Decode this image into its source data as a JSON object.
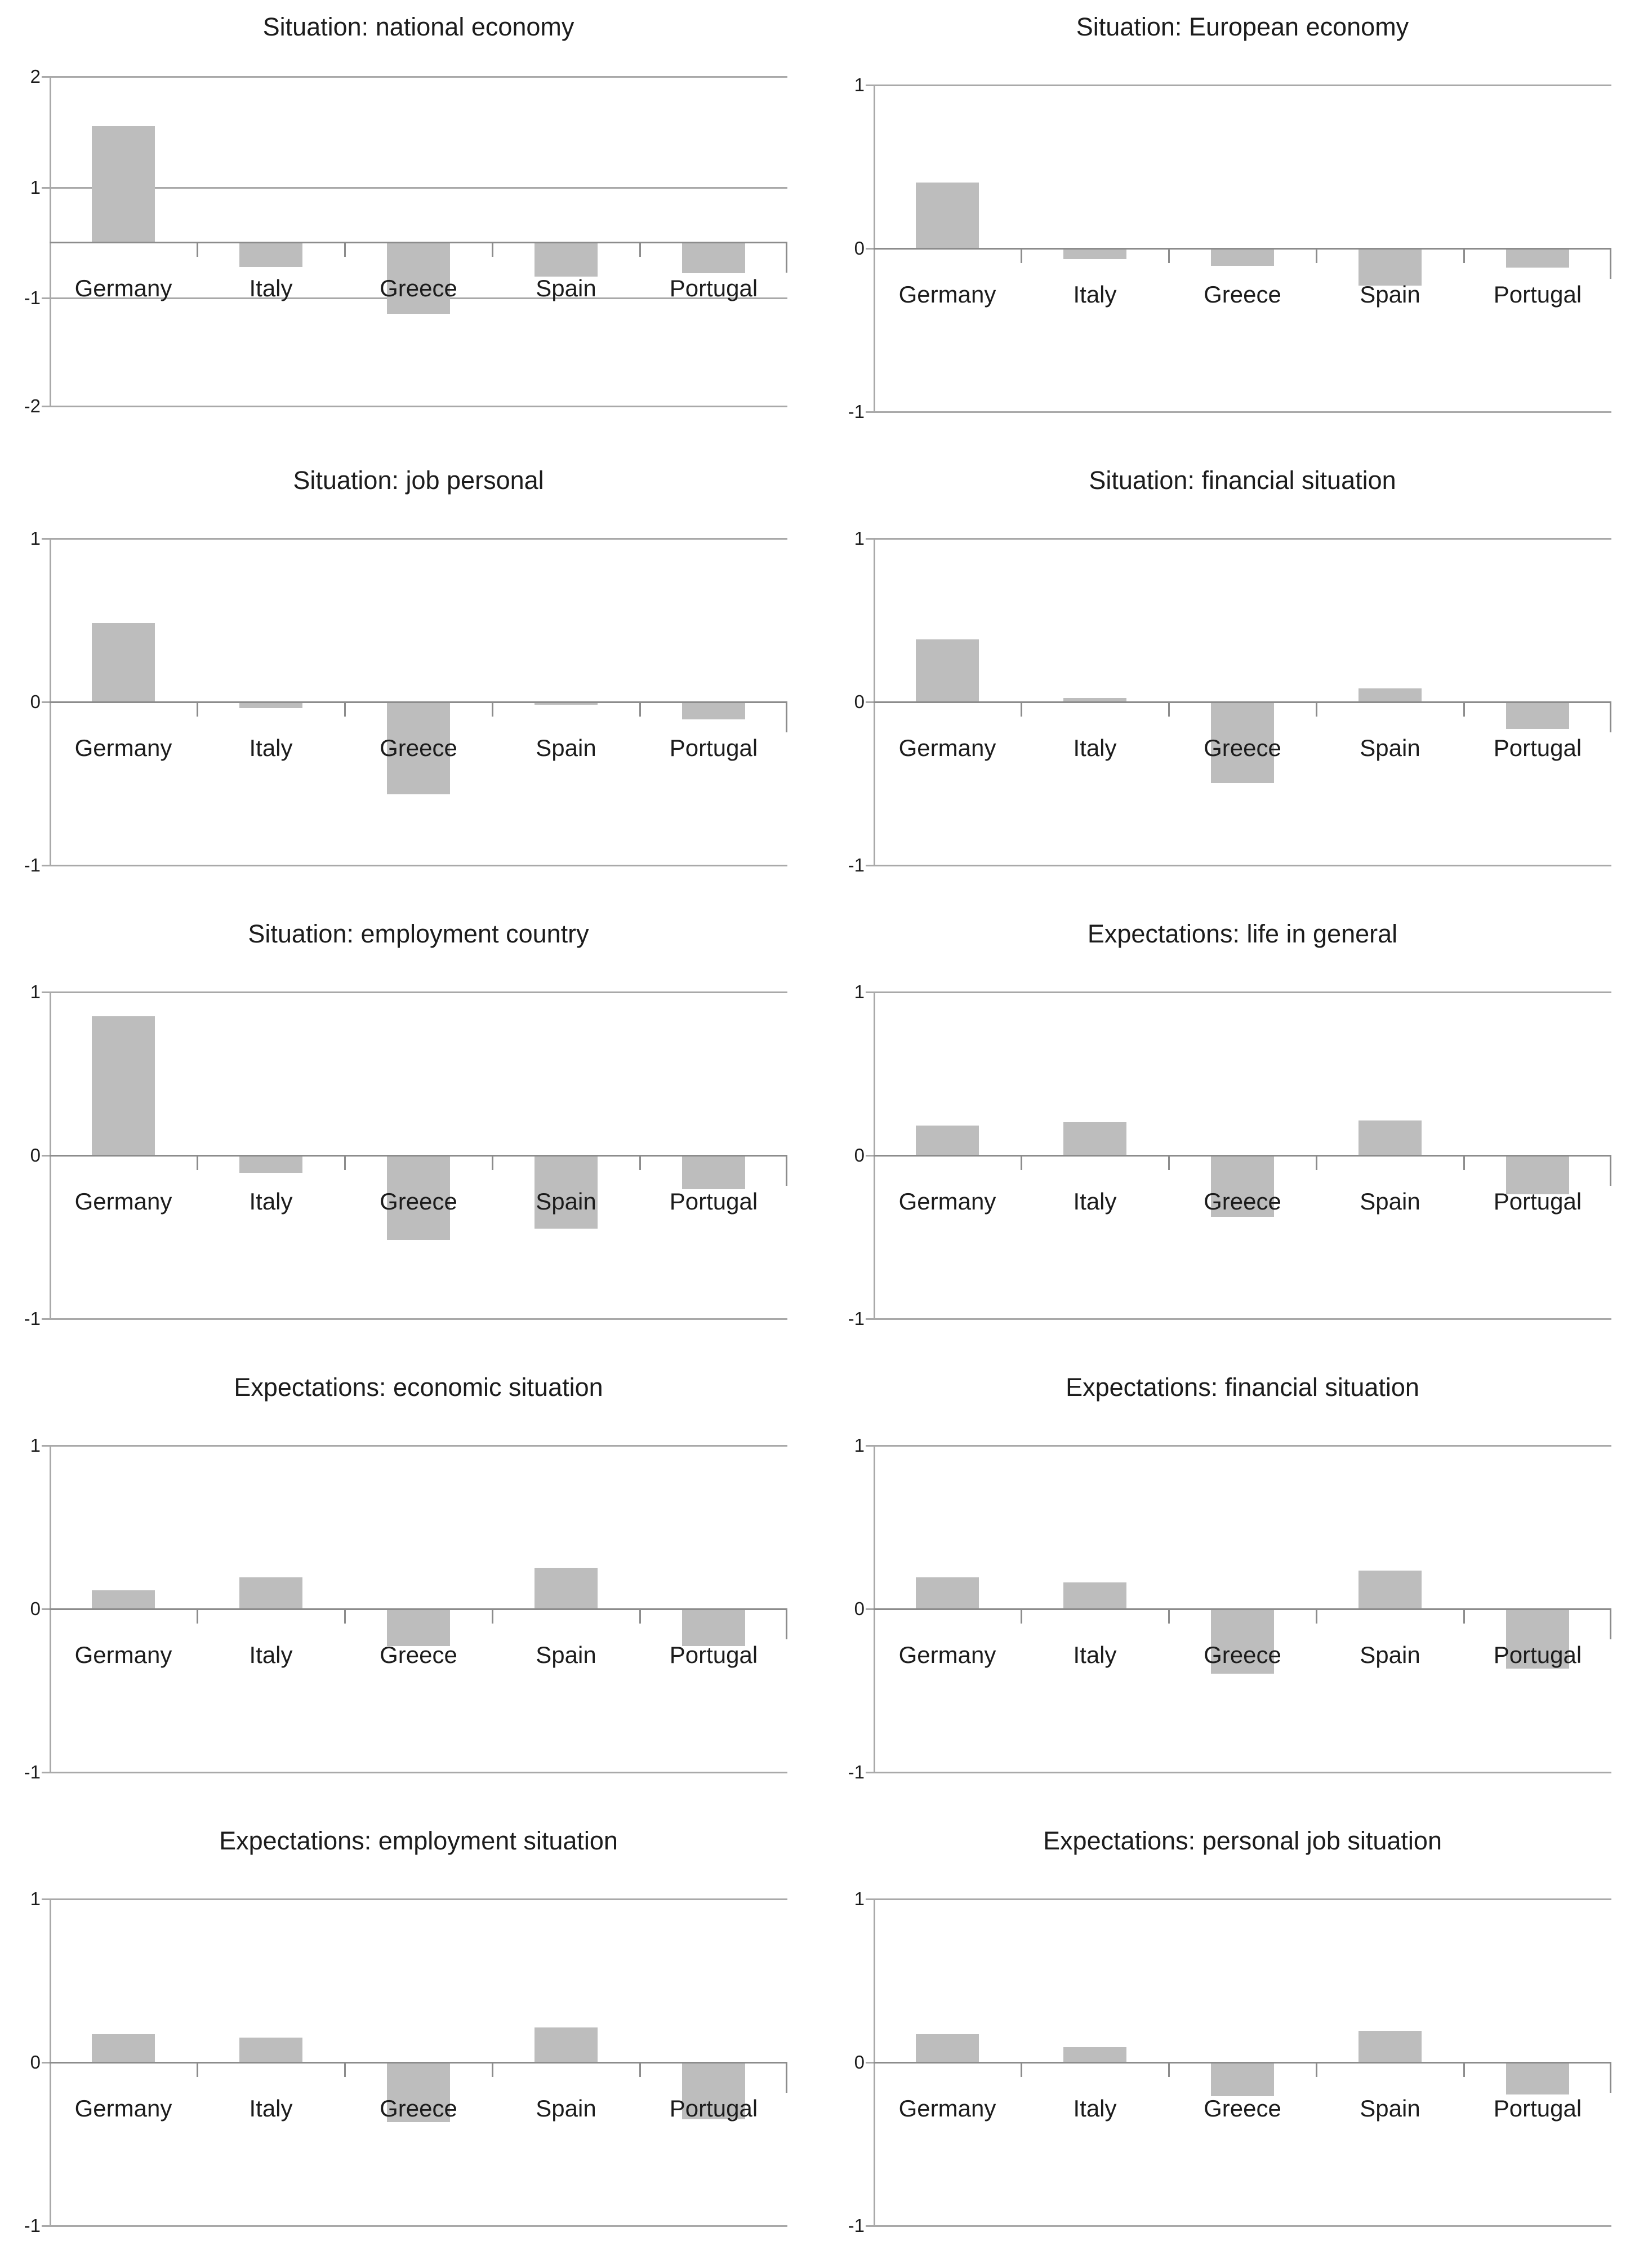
{
  "figure": {
    "background": "#ffffff",
    "layout": "2 columns x 5 rows of bar charts"
  },
  "colors": {
    "bar": "#bdbdbd",
    "gridline": "#a9a9a9",
    "zero_axis": "#8c8c8c",
    "text": "#1c1c1c"
  },
  "chart_data": [
    {
      "type": "bar",
      "title": "Situation: national economy",
      "categories": [
        "Germany",
        "Italy",
        "Greece",
        "Spain",
        "Portugal"
      ],
      "values": [
        1.55,
        -0.45,
        -1.15,
        -0.63,
        -0.57
      ],
      "ylim": [
        -2,
        2
      ],
      "yticks": [
        {
          "value": 2,
          "label": "2"
        },
        {
          "value": 1,
          "label": "1"
        },
        {
          "value": -1,
          "label": "-1"
        },
        {
          "value": -2,
          "label": "-2"
        }
      ],
      "xlabel": "",
      "ylabel": "",
      "grid": "horizontal",
      "legend": "none"
    },
    {
      "type": "bar",
      "title": "Situation: European economy",
      "categories": [
        "Germany",
        "Italy",
        "Greece",
        "Spain",
        "Portugal"
      ],
      "values": [
        0.4,
        -0.07,
        -0.11,
        -0.23,
        -0.12
      ],
      "ylim": [
        -1,
        1
      ],
      "yticks": [
        {
          "value": 1,
          "label": "1"
        },
        {
          "value": 0,
          "label": "0"
        },
        {
          "value": -1,
          "label": "-1"
        }
      ],
      "xlabel": "",
      "ylabel": "",
      "grid": "horizontal",
      "legend": "none"
    },
    {
      "type": "bar",
      "title": "Situation: job personal",
      "categories": [
        "Germany",
        "Italy",
        "Greece",
        "Spain",
        "Portugal"
      ],
      "values": [
        0.48,
        -0.04,
        -0.57,
        -0.02,
        -0.11
      ],
      "ylim": [
        -1,
        1
      ],
      "yticks": [
        {
          "value": 1,
          "label": "1"
        },
        {
          "value": 0,
          "label": "0"
        },
        {
          "value": -1,
          "label": "-1"
        }
      ],
      "xlabel": "",
      "ylabel": "",
      "grid": "horizontal",
      "legend": "none"
    },
    {
      "type": "bar",
      "title": "Situation: financial situation",
      "categories": [
        "Germany",
        "Italy",
        "Greece",
        "Spain",
        "Portugal"
      ],
      "values": [
        0.38,
        0.02,
        -0.5,
        0.08,
        -0.17
      ],
      "ylim": [
        -1,
        1
      ],
      "yticks": [
        {
          "value": 1,
          "label": "1"
        },
        {
          "value": 0,
          "label": "0"
        },
        {
          "value": -1,
          "label": "-1"
        }
      ],
      "xlabel": "",
      "ylabel": "",
      "grid": "horizontal",
      "legend": "none"
    },
    {
      "type": "bar",
      "title": "Situation: employment country",
      "categories": [
        "Germany",
        "Italy",
        "Greece",
        "Spain",
        "Portugal"
      ],
      "values": [
        0.85,
        -0.11,
        -0.52,
        -0.45,
        -0.21
      ],
      "ylim": [
        -1,
        1
      ],
      "yticks": [
        {
          "value": 1,
          "label": "1"
        },
        {
          "value": 0,
          "label": "0"
        },
        {
          "value": -1,
          "label": "-1"
        }
      ],
      "xlabel": "",
      "ylabel": "",
      "grid": "horizontal",
      "legend": "none"
    },
    {
      "type": "bar",
      "title": "Expectations: life in general",
      "categories": [
        "Germany",
        "Italy",
        "Greece",
        "Spain",
        "Portugal"
      ],
      "values": [
        0.18,
        0.2,
        -0.38,
        0.21,
        -0.24
      ],
      "ylim": [
        -1,
        1
      ],
      "yticks": [
        {
          "value": 1,
          "label": "1"
        },
        {
          "value": 0,
          "label": "0"
        },
        {
          "value": -1,
          "label": "-1"
        }
      ],
      "xlabel": "",
      "ylabel": "",
      "grid": "horizontal",
      "legend": "none"
    },
    {
      "type": "bar",
      "title": "Expectations: economic situation",
      "categories": [
        "Germany",
        "Italy",
        "Greece",
        "Spain",
        "Portugal"
      ],
      "values": [
        0.11,
        0.19,
        -0.23,
        0.25,
        -0.23
      ],
      "ylim": [
        -1,
        1
      ],
      "yticks": [
        {
          "value": 1,
          "label": "1"
        },
        {
          "value": 0,
          "label": "0"
        },
        {
          "value": -1,
          "label": "-1"
        }
      ],
      "xlabel": "",
      "ylabel": "",
      "grid": "horizontal",
      "legend": "none"
    },
    {
      "type": "bar",
      "title": "Expectations: financial situation",
      "categories": [
        "Germany",
        "Italy",
        "Greece",
        "Spain",
        "Portugal"
      ],
      "values": [
        0.19,
        0.16,
        -0.4,
        0.23,
        -0.37
      ],
      "ylim": [
        -1,
        1
      ],
      "yticks": [
        {
          "value": 1,
          "label": "1"
        },
        {
          "value": 0,
          "label": "0"
        },
        {
          "value": -1,
          "label": "-1"
        }
      ],
      "xlabel": "",
      "ylabel": "",
      "grid": "horizontal",
      "legend": "none"
    },
    {
      "type": "bar",
      "title": "Expectations: employment situation",
      "categories": [
        "Germany",
        "Italy",
        "Greece",
        "Spain",
        "Portugal"
      ],
      "values": [
        0.17,
        0.15,
        -0.37,
        0.21,
        -0.35
      ],
      "ylim": [
        -1,
        1
      ],
      "yticks": [
        {
          "value": 1,
          "label": "1"
        },
        {
          "value": 0,
          "label": "0"
        },
        {
          "value": -1,
          "label": "-1"
        }
      ],
      "xlabel": "",
      "ylabel": "",
      "grid": "horizontal",
      "legend": "none"
    },
    {
      "type": "bar",
      "title": "Expectations: personal job situation",
      "categories": [
        "Germany",
        "Italy",
        "Greece",
        "Spain",
        "Portugal"
      ],
      "values": [
        0.17,
        0.09,
        -0.21,
        0.19,
        -0.2
      ],
      "ylim": [
        -1,
        1
      ],
      "yticks": [
        {
          "value": 1,
          "label": "1"
        },
        {
          "value": 0,
          "label": "0"
        },
        {
          "value": -1,
          "label": "-1"
        }
      ],
      "xlabel": "",
      "ylabel": "",
      "grid": "horizontal",
      "legend": "none"
    }
  ]
}
